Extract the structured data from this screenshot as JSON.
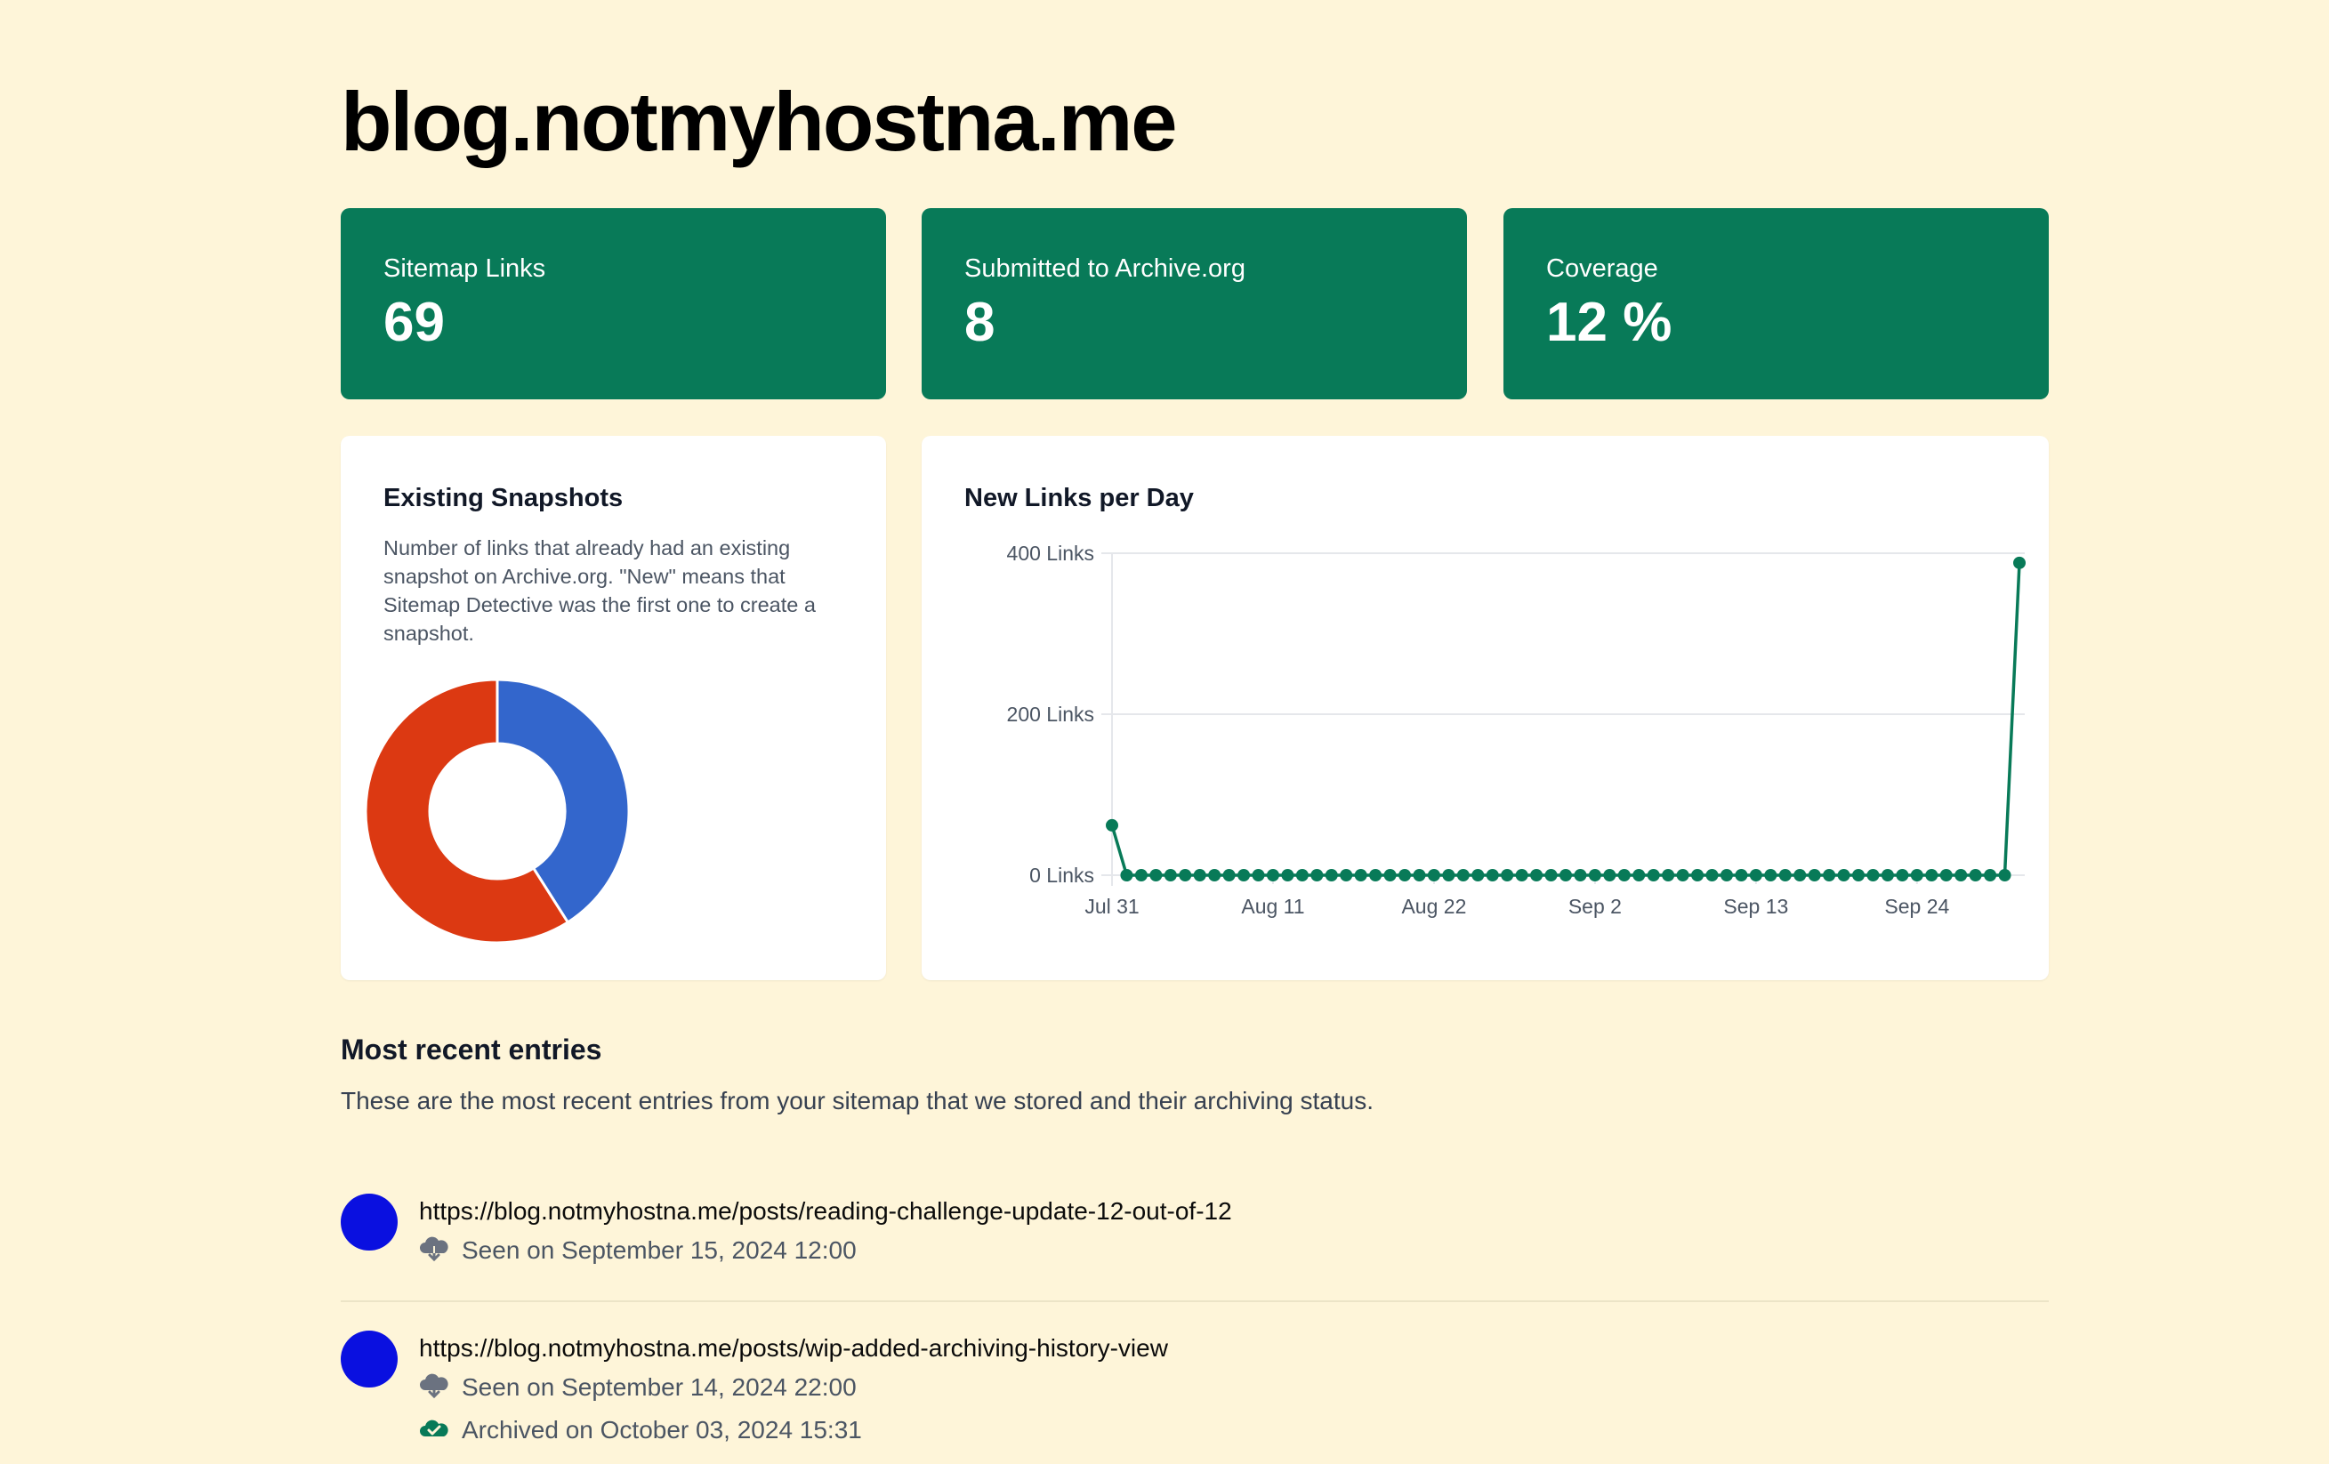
{
  "site": {
    "title": "blog.notmyhostna.me"
  },
  "stats": [
    {
      "label": "Sitemap Links",
      "value": "69"
    },
    {
      "label": "Submitted to Archive.org",
      "value": "8"
    },
    {
      "label": "Coverage",
      "value": "12 %"
    }
  ],
  "snapshots_card": {
    "title": "Existing Snapshots",
    "description": "Number of links that already had an existing snapshot on Archive.org. \"New\" means that Sitemap Detective was the first one to create a snapshot."
  },
  "links_card": {
    "title": "New Links per Day"
  },
  "recent": {
    "title": "Most recent entries",
    "description": "These are the most recent entries from your sitemap that we stored and their archiving status.",
    "entries": [
      {
        "url": "https://blog.notmyhostna.me/posts/reading-challenge-update-12-out-of-12",
        "seen": "Seen on September 15, 2024 12:00"
      },
      {
        "url": "https://blog.notmyhostna.me/posts/wip-added-archiving-history-view",
        "seen": "Seen on September 14, 2024 22:00",
        "archived": "Archived on October 03, 2024 15:31"
      }
    ]
  },
  "colors": {
    "accent": "#087a58",
    "background": "#fef5d9",
    "donut_blue": "#3366cc",
    "donut_red": "#dc3912",
    "avatar": "#0a10e0"
  },
  "chart_data": [
    {
      "type": "pie",
      "title": "Existing Snapshots",
      "donut": true,
      "values": [
        0.41,
        0.59
      ],
      "colors": [
        "#3366cc",
        "#dc3912"
      ]
    },
    {
      "type": "line",
      "title": "New Links per Day",
      "y_ticks": [
        "400 Links",
        "200 Links",
        "0 Links"
      ],
      "ylim": [
        0,
        400
      ],
      "x_ticks": [
        "Jul 31",
        "Aug 11",
        "Aug 22",
        "Sep 2",
        "Sep 13",
        "Sep 24"
      ],
      "x_tick_index": [
        0,
        11,
        22,
        33,
        44,
        55
      ],
      "series": [
        {
          "values": [
            62,
            0,
            0,
            0,
            0,
            0,
            0,
            0,
            0,
            0,
            0,
            0,
            0,
            0,
            0,
            0,
            0,
            0,
            0,
            0,
            0,
            0,
            0,
            0,
            0,
            0,
            0,
            0,
            0,
            0,
            0,
            0,
            0,
            0,
            0,
            0,
            0,
            0,
            0,
            0,
            0,
            0,
            0,
            0,
            0,
            0,
            0,
            0,
            0,
            0,
            0,
            0,
            0,
            0,
            0,
            0,
            0,
            0,
            0,
            0,
            0,
            0,
            388
          ]
        }
      ]
    }
  ]
}
